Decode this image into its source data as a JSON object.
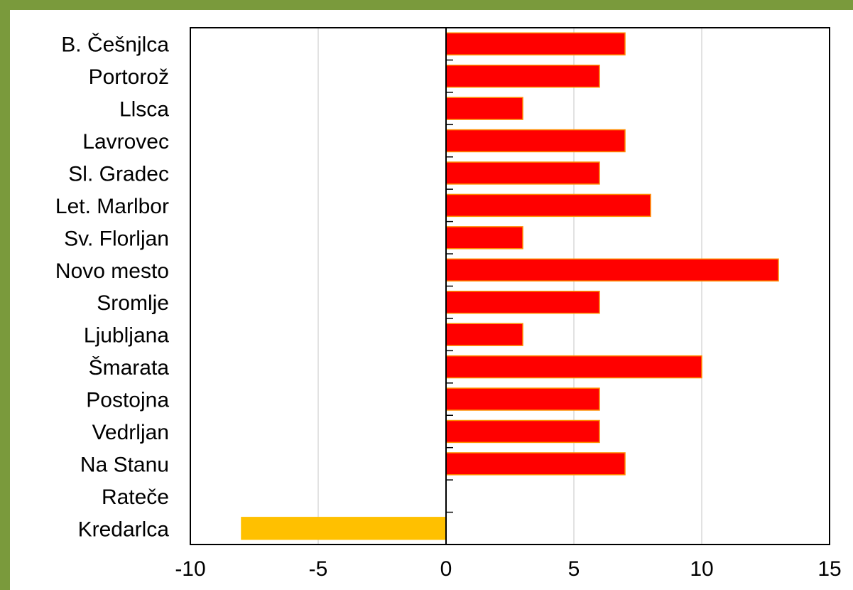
{
  "colors": {
    "frame": "#7a9a3c",
    "positive_bar": "#ff0000",
    "positive_bar_edge": "#ff8c00",
    "negative_bar": "#ffc000",
    "grid": "#d9d9d9",
    "axis": "#000000"
  },
  "chart_data": {
    "type": "bar",
    "orientation": "horizontal",
    "title": "",
    "xlabel": "",
    "ylabel": "",
    "xlim": [
      -10,
      15
    ],
    "x_ticks": [
      "-10",
      "-5",
      "0",
      "5",
      "10",
      "15"
    ],
    "grid": true,
    "legend": "none",
    "categories": [
      "B. Češnjlca",
      "Portorož",
      "Llsca",
      "Lavrovec",
      "Sl. Gradec",
      "Let. Marlbor",
      "Sv. Florljan",
      "Novo mesto",
      "Sromlje",
      "Ljubljana",
      "Šmarata",
      "Postojna",
      "Vedrljan",
      "Na Stanu",
      "Rateče",
      "Kredarlca"
    ],
    "values": [
      7,
      6,
      3,
      7,
      6,
      8,
      3,
      13,
      6,
      3,
      10,
      6,
      6,
      7,
      0,
      -8
    ]
  }
}
